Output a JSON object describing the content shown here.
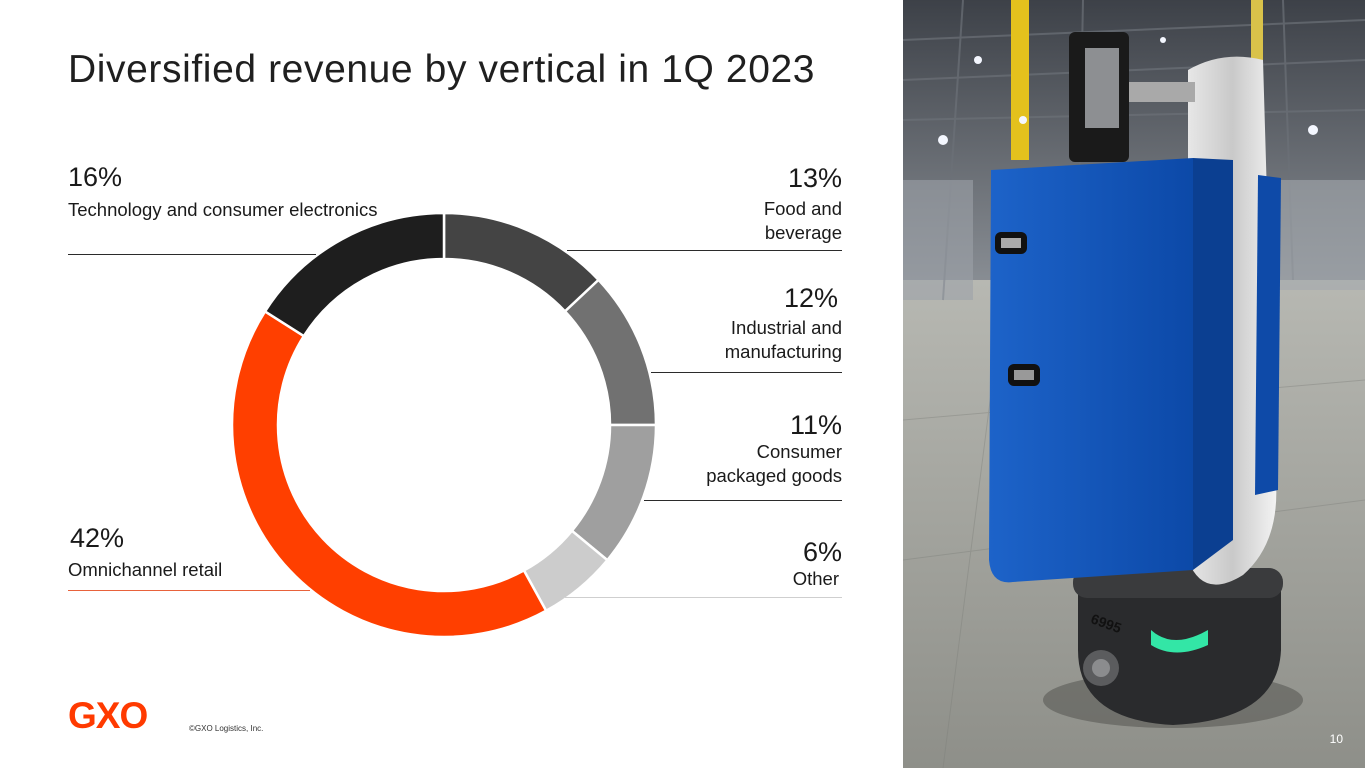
{
  "slide": {
    "title": "Diversified revenue by vertical in 1Q 2023",
    "copyright": "©GXO Logistics, Inc.",
    "page_number": "10",
    "logo_text": "GXO",
    "brand_color": "#ff3a00"
  },
  "chart_data": {
    "type": "pie",
    "title": "Diversified revenue by vertical in 1Q 2023",
    "unit": "%",
    "slices": [
      {
        "label": "Food and beverage",
        "value": 13,
        "pct_label": "13%",
        "color": "#444444"
      },
      {
        "label": "Industrial and manufacturing",
        "value": 12,
        "pct_label": "12%",
        "color": "#717171"
      },
      {
        "label": "Consumer packaged goods",
        "value": 11,
        "pct_label": "11%",
        "color": "#9f9f9f"
      },
      {
        "label": "Other",
        "value": 6,
        "pct_label": "6%",
        "color": "#cccccc"
      },
      {
        "label": "Omnichannel retail",
        "value": 42,
        "pct_label": "42%",
        "color": "#ff3f00"
      },
      {
        "label": "Technology and consumer electronics",
        "value": 16,
        "pct_label": "16%",
        "color": "#1e1e1e"
      }
    ]
  }
}
